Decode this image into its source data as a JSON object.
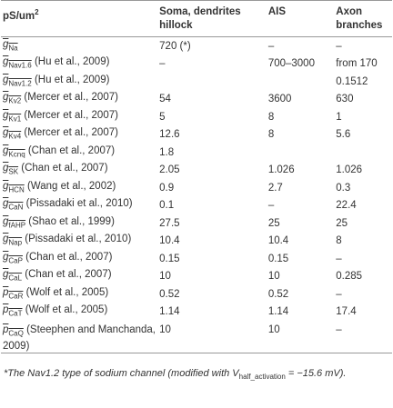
{
  "table": {
    "header": {
      "unit": {
        "text": "pS/um",
        "sup": "2"
      },
      "columns": [
        "Soma, dendrites hillock",
        "AIS",
        "Axon branches"
      ]
    },
    "rows": [
      {
        "symbol": "g",
        "sub": "Na",
        "cells": [
          "720 (*)",
          "–",
          "–"
        ]
      },
      {
        "symbol": "g",
        "sub": "Nav1.6",
        "ref": "(Hu et al., 2009)",
        "cells": [
          "–",
          "700–3000",
          "from 170"
        ]
      },
      {
        "symbol": "g",
        "sub": "Nav1.2",
        "ref": "(Hu et al., 2009)",
        "cells": [
          null,
          null,
          "0.1512"
        ]
      },
      {
        "symbol": "g",
        "sub": "Kv2",
        "ref": "(Mercer et al., 2007)",
        "cells": [
          "54",
          "3600",
          "630"
        ]
      },
      {
        "symbol": "g",
        "sub": "Kv1",
        "ref": "(Mercer et al., 2007)",
        "cells": [
          "5",
          "8",
          "1"
        ]
      },
      {
        "symbol": "g",
        "sub": "Kv4",
        "ref": "(Mercer et al., 2007)",
        "cells": [
          "12.6",
          "8",
          "5.6"
        ]
      },
      {
        "symbol": "g",
        "sub": "Kcnq",
        "ref": "(Chan et al., 2007)",
        "cells": [
          "1.8",
          null,
          null
        ]
      },
      {
        "symbol": "g",
        "sub": "SK",
        "ref": "(Chan et al., 2007)",
        "cells": [
          "2.05",
          "1.026",
          "1.026"
        ]
      },
      {
        "symbol": "g",
        "sub": "HCN",
        "ref": "(Wang et al., 2002)",
        "cells": [
          "0.9",
          "2.7",
          "0.3"
        ]
      },
      {
        "symbol": "g",
        "sub": "CaN",
        "ref": "(Pissadaki et al., 2010)",
        "cells": [
          "0.1",
          "–",
          "22.4"
        ]
      },
      {
        "symbol": "g",
        "sub": "fAHP",
        "ref": "(Shao et al., 1999)",
        "cells": [
          "27.5",
          "25",
          "25"
        ]
      },
      {
        "symbol": "g",
        "sub": "Nap",
        "ref": "(Pissadaki et al., 2010)",
        "cells": [
          "10.4",
          "10.4",
          "8"
        ]
      },
      {
        "symbol": "g",
        "sub": "CaP",
        "ref": "(Chan et al., 2007)",
        "cells": [
          "0.15",
          "0.15",
          "–"
        ]
      },
      {
        "symbol": "g",
        "sub": "CaL",
        "ref": "(Chan et al., 2007)",
        "cells": [
          "10",
          "10",
          "0.285"
        ]
      },
      {
        "symbol": "p",
        "sub": "CaR",
        "ref": "(Wolf et al., 2005)",
        "cells": [
          "0.52",
          "0.52",
          "–"
        ]
      },
      {
        "symbol": "p",
        "sub": "CaT",
        "ref": "(Wolf et al., 2005)",
        "cells": [
          "1.14",
          "1.14",
          "17.4"
        ]
      },
      {
        "symbol": "p",
        "sub": "CaQ",
        "ref": "(Steephen and Manchanda, 2009)",
        "cells": [
          "10",
          "10",
          "–"
        ]
      }
    ],
    "footnote": {
      "text": "*The Nav1.2 type of sodium channel (modified with V",
      "sub": "half_activation",
      "tail": " = −15.6 mV)."
    }
  }
}
